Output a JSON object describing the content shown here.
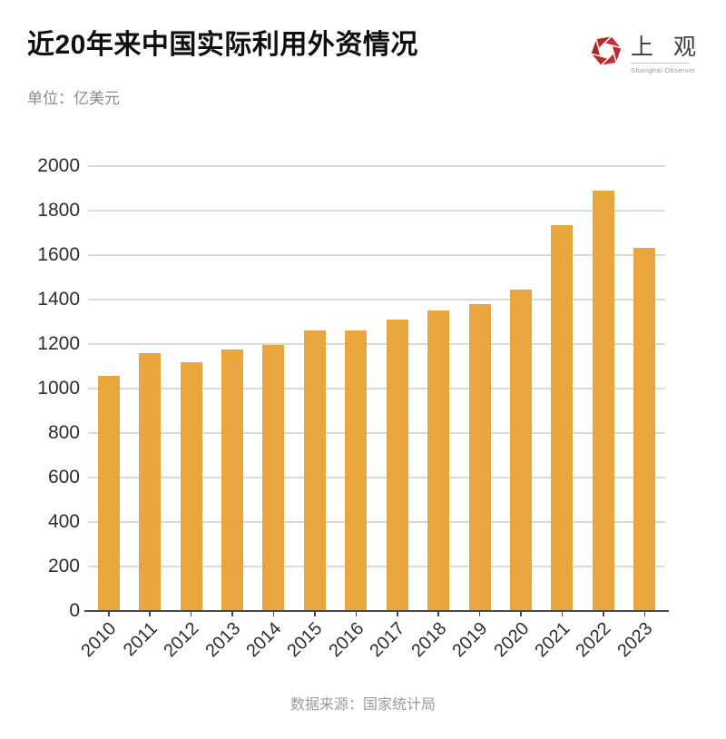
{
  "header": {
    "title": "近20年来中国实际利用外资情况",
    "unit_label": "单位：亿美元",
    "logo": {
      "name": "上 观",
      "subtext": "Shanghai Observer",
      "icon": "aperture-hexagon-icon",
      "color": "#BE2B31"
    }
  },
  "chart_data": {
    "type": "bar",
    "title": "近20年来中国实际利用外资情况",
    "unit": "亿美元",
    "categories": [
      "2010",
      "2011",
      "2012",
      "2013",
      "2014",
      "2015",
      "2016",
      "2017",
      "2018",
      "2019",
      "2020",
      "2021",
      "2022",
      "2023"
    ],
    "values": [
      1057,
      1160,
      1117,
      1176,
      1196,
      1263,
      1260,
      1310,
      1350,
      1381,
      1444,
      1735,
      1891,
      1633
    ],
    "xlabel": "",
    "ylabel": "",
    "ylim": [
      0,
      2000
    ],
    "ytick_step": 200,
    "grid": true,
    "legend": "none",
    "bar_color": "#E9A63E",
    "gridline_color": "#dadada",
    "axis_color": "#4a4a4a"
  },
  "footer": {
    "source": "数据来源：国家统计局"
  }
}
